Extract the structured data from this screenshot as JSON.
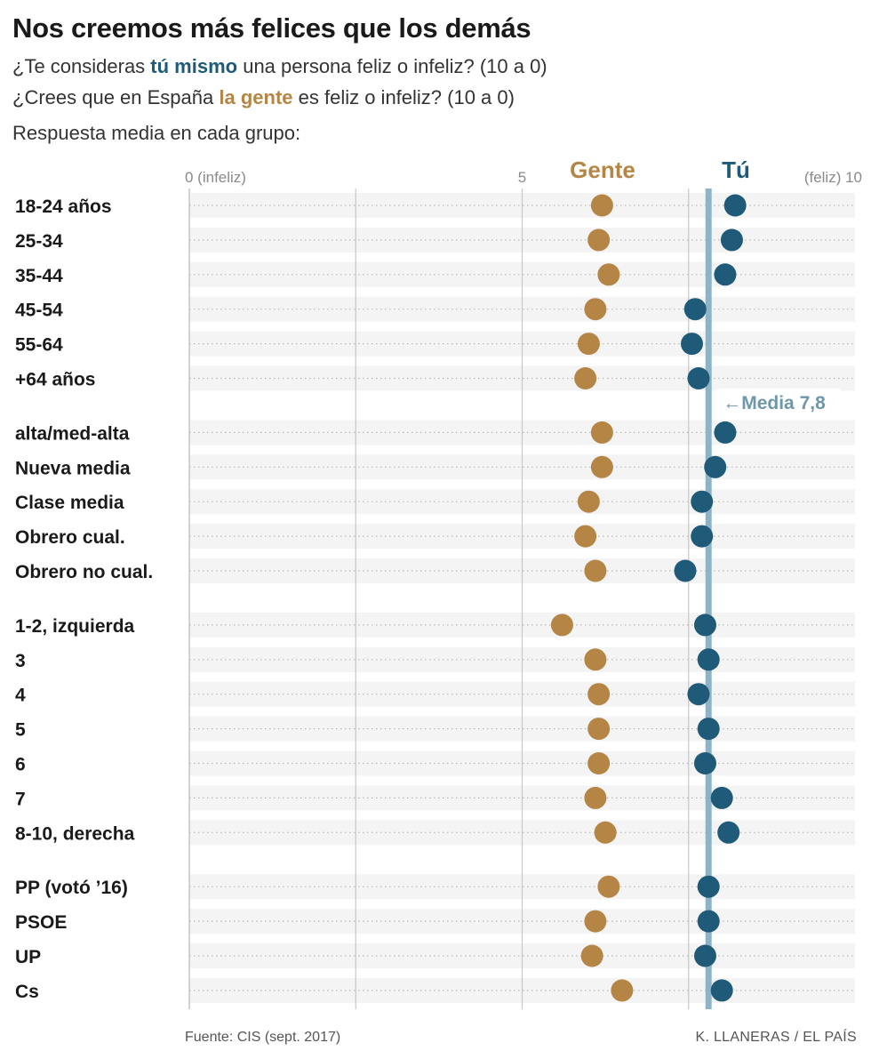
{
  "title": "Nos creemos más felices que los demás",
  "subtitle1": {
    "pre": "¿Te consideras ",
    "highlight": "tú mismo",
    "post": " una persona feliz o infeliz? (10 a 0)"
  },
  "subtitle2": {
    "pre": "¿Crees que en España ",
    "highlight": "la gente",
    "post": " es feliz o infeliz? (10 a 0)"
  },
  "subtitle3": "Respuesta media en cada grupo:",
  "footer": {
    "source": "Fuente: CIS (sept. 2017)",
    "credit": "K. LLANERAS / EL PAÍS"
  },
  "colors": {
    "gente": "#b58545",
    "tu": "#1f5a78",
    "media": "#8fb3c6",
    "grid": "#c8c8c8",
    "row_bg": "#f4f4f4"
  },
  "chart_data": {
    "type": "scatter",
    "xlim": [
      0,
      10
    ],
    "tick_labels": [
      {
        "value": 0,
        "label": "0 (infeliz)"
      },
      {
        "value": 5,
        "label": "5"
      },
      {
        "value": 10,
        "label": "(feliz) 10"
      }
    ],
    "series_labels": {
      "gente": "Gente",
      "tu": "Tú"
    },
    "mean_line": {
      "value": 7.8,
      "label": "←Media 7,8"
    },
    "groups": [
      {
        "rows": [
          {
            "label": "18-24 años",
            "gente": 6.2,
            "tu": 8.2
          },
          {
            "label": "25-34",
            "gente": 6.15,
            "tu": 8.15
          },
          {
            "label": "35-44",
            "gente": 6.3,
            "tu": 8.05
          },
          {
            "label": "45-54",
            "gente": 6.1,
            "tu": 7.6
          },
          {
            "label": "55-64",
            "gente": 6.0,
            "tu": 7.55
          },
          {
            "label": "+64 años",
            "gente": 5.95,
            "tu": 7.65
          }
        ]
      },
      {
        "rows": [
          {
            "label": "alta/med-alta",
            "gente": 6.2,
            "tu": 8.05
          },
          {
            "label": "Nueva media",
            "gente": 6.2,
            "tu": 7.9
          },
          {
            "label": "Clase media",
            "gente": 6.0,
            "tu": 7.7
          },
          {
            "label": "Obrero cual.",
            "gente": 5.95,
            "tu": 7.7
          },
          {
            "label": "Obrero no cual.",
            "gente": 6.1,
            "tu": 7.45
          }
        ]
      },
      {
        "rows": [
          {
            "label": "1-2, izquierda",
            "gente": 5.6,
            "tu": 7.75
          },
          {
            "label": "3",
            "gente": 6.1,
            "tu": 7.8
          },
          {
            "label": "4",
            "gente": 6.15,
            "tu": 7.65
          },
          {
            "label": "5",
            "gente": 6.15,
            "tu": 7.8
          },
          {
            "label": "6",
            "gente": 6.15,
            "tu": 7.75
          },
          {
            "label": "7",
            "gente": 6.1,
            "tu": 8.0
          },
          {
            "label": "8-10, derecha",
            "gente": 6.25,
            "tu": 8.1
          }
        ]
      },
      {
        "rows": [
          {
            "label": "PP (votó ’16)",
            "gente": 6.3,
            "tu": 7.8
          },
          {
            "label": "PSOE",
            "gente": 6.1,
            "tu": 7.8
          },
          {
            "label": "UP",
            "gente": 6.05,
            "tu": 7.75
          },
          {
            "label": "Cs",
            "gente": 6.5,
            "tu": 8.0
          }
        ]
      }
    ]
  }
}
